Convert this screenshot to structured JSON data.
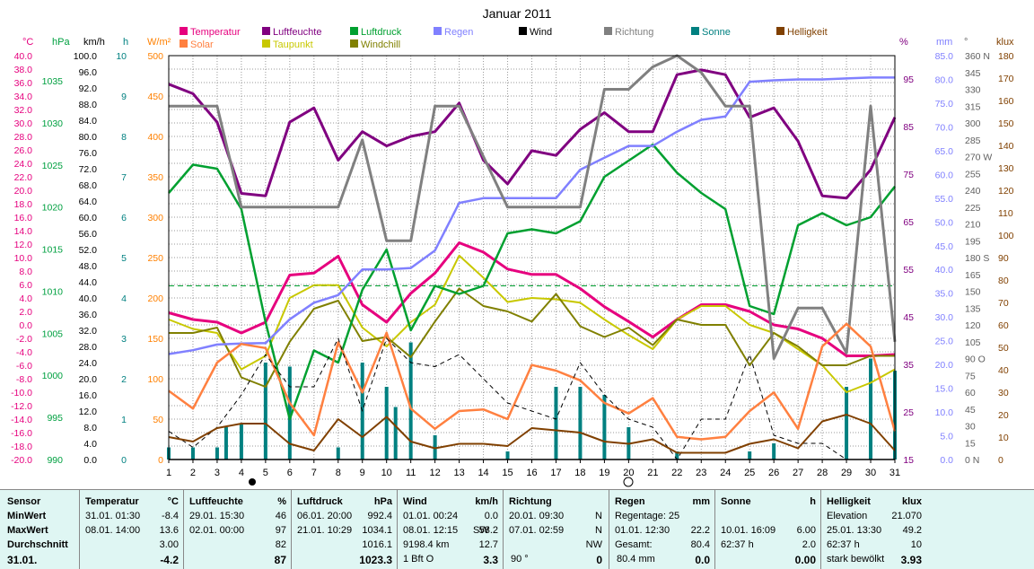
{
  "chart_data": {
    "type": "line",
    "title": "Januar 2011",
    "days": [
      "1",
      "2",
      "3",
      "4",
      "5",
      "6",
      "7",
      "8",
      "9",
      "10",
      "11",
      "12",
      "13",
      "14",
      "15",
      "16",
      "17",
      "18",
      "19",
      "20",
      "21",
      "22",
      "23",
      "24",
      "25",
      "26",
      "27",
      "28",
      "29",
      "30",
      "31"
    ],
    "axes": {
      "temp": {
        "unit": "°C",
        "color": "#e6007e",
        "ticks": [
          "40.0",
          "38.0",
          "36.0",
          "34.0",
          "32.0",
          "30.0",
          "28.0",
          "26.0",
          "24.0",
          "22.0",
          "20.0",
          "18.0",
          "16.0",
          "14.0",
          "12.0",
          "10.0",
          "8.0",
          "6.0",
          "4.0",
          "2.0",
          "0.0",
          "-2.0",
          "-4.0",
          "-6.0",
          "-8.0",
          "-10.0",
          "-12.0",
          "-14.0",
          "-16.0",
          "-18.0",
          "-20.0"
        ]
      },
      "press": {
        "unit": "hPa",
        "color": "#00a040",
        "ticks": [
          "1035",
          "1030",
          "1025",
          "1020",
          "1015",
          "1010",
          "1005",
          "1000",
          "995",
          "990"
        ]
      },
      "wind": {
        "unit": "km/h",
        "color": "#000000",
        "ticks": [
          "100.0",
          "96.0",
          "92.0",
          "88.0",
          "84.0",
          "80.0",
          "76.0",
          "72.0",
          "68.0",
          "64.0",
          "60.0",
          "56.0",
          "52.0",
          "48.0",
          "44.0",
          "40.0",
          "36.0",
          "32.0",
          "28.0",
          "24.0",
          "20.0",
          "16.0",
          "12.0",
          "8.0",
          "4.0",
          "0.0"
        ]
      },
      "sun": {
        "unit": "h",
        "color": "#008080",
        "ticks": [
          "10",
          "9",
          "8",
          "7",
          "6",
          "5",
          "4",
          "3",
          "2",
          "1",
          "0"
        ]
      },
      "solar": {
        "unit": "W/m²",
        "color": "#ff8000",
        "ticks": [
          "500",
          "450",
          "400",
          "350",
          "300",
          "250",
          "200",
          "150",
          "100",
          "50",
          "0"
        ]
      },
      "hum": {
        "unit": "%",
        "color": "#800080",
        "ticks": [
          "95",
          "85",
          "75",
          "65",
          "55",
          "45",
          "35",
          "25",
          "15"
        ]
      },
      "rain": {
        "unit": "mm",
        "color": "#8080ff",
        "ticks": [
          "85.0",
          "80.0",
          "75.0",
          "70.0",
          "65.0",
          "60.0",
          "55.0",
          "50.0",
          "45.0",
          "40.0",
          "35.0",
          "30.0",
          "25.0",
          "20.0",
          "15.0",
          "10.0",
          "5.0",
          "0.0"
        ]
      },
      "dir": {
        "unit": "°",
        "color": "#606060",
        "ticks": [
          "360 N",
          "345",
          "330",
          "315",
          "300",
          "285",
          "270 W",
          "255",
          "240",
          "225",
          "210",
          "195",
          "180 S",
          "165",
          "150",
          "135",
          "120",
          "105",
          "90 O",
          "75",
          "60",
          "45",
          "30",
          "15",
          "0 N"
        ]
      },
      "light": {
        "unit": "klux",
        "color": "#804000",
        "ticks": [
          "180",
          "170",
          "160",
          "150",
          "140",
          "130",
          "120",
          "110",
          "100",
          "90",
          "80",
          "70",
          "60",
          "50",
          "40",
          "30",
          "20",
          "10",
          "0"
        ]
      }
    },
    "legend": [
      {
        "label": "Temperatur",
        "color": "#e6007e"
      },
      {
        "label": "Solar",
        "color": "#ff8040"
      },
      {
        "label": "Luftfeuchte",
        "color": "#800080"
      },
      {
        "label": "Taupunkt",
        "color": "#c8c800"
      },
      {
        "label": "Luftdruck",
        "color": "#00a030"
      },
      {
        "label": "Windchill",
        "color": "#808000"
      },
      {
        "label": "Regen",
        "color": "#8080ff"
      },
      {
        "label": "Wind",
        "color": "#000000"
      },
      {
        "label": "Richtung",
        "color": "#808080"
      },
      {
        "label": "Sonne",
        "color": "#008080"
      },
      {
        "label": "Helligkeit",
        "color": "#804000"
      }
    ],
    "series": [
      {
        "key": "temp",
        "axis": "temp",
        "min": -20,
        "max": 40,
        "color": "#e6007e",
        "width": 3,
        "values": [
          1.8,
          0.8,
          0.4,
          -1.2,
          0.4,
          7.4,
          7.7,
          10.2,
          3.0,
          0.4,
          4.7,
          7.7,
          12.2,
          10.8,
          8.3,
          7.5,
          7.5,
          5.4,
          2.7,
          0.5,
          -1.8,
          0.8,
          3.0,
          3.0,
          2.0,
          0.0,
          -0.6,
          -2.0,
          -4.6,
          -4.6,
          -4.4
        ]
      },
      {
        "key": "dew",
        "axis": "temp",
        "min": -20,
        "max": 40,
        "color": "#c8c800",
        "width": 2,
        "values": [
          0.8,
          -0.6,
          -1.2,
          -6.6,
          -4.6,
          4.0,
          5.9,
          5.9,
          -0.4,
          -3.2,
          0.4,
          3.0,
          10.3,
          7.0,
          3.4,
          4.0,
          3.8,
          3.3,
          0.8,
          -1.5,
          -3.6,
          0.8,
          2.8,
          2.8,
          0.0,
          -1.2,
          -3.6,
          -6.0,
          -10.0,
          -8.6,
          -6.6
        ]
      },
      {
        "key": "chill",
        "axis": "temp",
        "min": -20,
        "max": 40,
        "color": "#808000",
        "width": 2,
        "values": [
          -1.2,
          -1.2,
          -0.4,
          -7.8,
          -9.2,
          -2.5,
          2.4,
          3.6,
          -2.4,
          -1.8,
          -4.8,
          0.5,
          5.4,
          2.8,
          2.0,
          0.5,
          4.6,
          -0.2,
          -1.8,
          -0.4,
          -3.0,
          0.8,
          0.0,
          0.0,
          -6.0,
          -1.2,
          -3.2,
          -6.0,
          -6.0,
          -4.6,
          -4.6
        ]
      },
      {
        "key": "hum",
        "axis": "hum",
        "min": 15,
        "max": 100,
        "color": "#800080",
        "width": 3,
        "values": [
          94,
          92,
          86,
          71,
          70.5,
          86,
          89,
          78,
          84,
          81,
          83,
          84,
          90,
          78,
          73,
          80,
          79,
          84.5,
          88,
          84,
          84,
          96,
          97,
          96,
          87,
          89,
          82,
          70.5,
          70,
          76,
          87
        ]
      },
      {
        "key": "press",
        "axis": "press",
        "min": 990,
        "max": 1040,
        "color": "#00a030",
        "width": 2.5,
        "values": [
          1023,
          1026.5,
          1026,
          1021,
          1007,
          995,
          1003.5,
          1002,
          1011,
          1016,
          1006,
          1011.5,
          1010.5,
          1011.5,
          1018,
          1018.5,
          1018,
          1019.5,
          1025,
          1027,
          1029,
          1025.5,
          1023,
          1021,
          1009,
          1008,
          1019,
          1020.5,
          1019,
          1020,
          1023.8
        ]
      },
      {
        "key": "rain",
        "axis": "rain",
        "min": 0,
        "max": 85,
        "color": "#8080ff",
        "width": 2.5,
        "values": [
          22.2,
          23,
          24.2,
          24.4,
          24.5,
          29.5,
          33,
          34.6,
          40,
          40,
          40.3,
          44,
          54,
          55,
          55,
          55,
          55,
          61,
          63.5,
          66,
          66,
          69,
          71.5,
          72.2,
          79.5,
          79.8,
          80,
          80,
          80.2,
          80.4,
          80.4
        ]
      },
      {
        "key": "dir",
        "axis": "dir",
        "min": 0,
        "max": 360,
        "color": "#808080",
        "width": 3,
        "values": [
          315,
          315,
          315,
          225,
          225,
          225,
          225,
          225,
          285,
          195,
          195,
          315,
          315,
          270,
          225,
          225,
          225,
          225,
          330,
          330,
          350,
          360,
          345,
          315,
          315,
          90,
          135,
          135,
          95,
          315,
          105
        ]
      },
      {
        "key": "solar",
        "axis": "solar",
        "min": 0,
        "max": 500,
        "color": "#ff8040",
        "width": 2.5,
        "values": [
          85,
          63,
          120,
          143,
          138,
          70,
          30,
          145,
          83,
          157,
          63,
          38,
          60,
          62,
          50,
          117,
          110,
          98,
          70,
          57,
          76,
          28,
          25,
          28,
          60,
          83,
          38,
          140,
          168,
          140,
          35
        ]
      },
      {
        "key": "wind",
        "axis": "wind",
        "min": 0,
        "max": 100,
        "color": "#000000",
        "width": 1,
        "dash": "5,4",
        "values": [
          7,
          3,
          8,
          16,
          26,
          18,
          18,
          30,
          12,
          30,
          24,
          23,
          26,
          20,
          14,
          12,
          10,
          24,
          16,
          10,
          8,
          0,
          10,
          10,
          26,
          6,
          4,
          4,
          0,
          0,
          0
        ]
      },
      {
        "key": "light",
        "axis": "light",
        "min": 0,
        "max": 180,
        "color": "#804000",
        "width": 2,
        "values": [
          10,
          8,
          14,
          16,
          16,
          7,
          4,
          18,
          10,
          19,
          8,
          5,
          7,
          7,
          6,
          14,
          13,
          12,
          8,
          7,
          9,
          3,
          3,
          3,
          7,
          9,
          5,
          17,
          20,
          16,
          4
        ]
      }
    ],
    "sunshine_hours": [
      0.3,
      0.3,
      0.3,
      0.9,
      2.4,
      2.3,
      0,
      0.3,
      2.4,
      1.8,
      2.9,
      0.6,
      0,
      0,
      0.2,
      0,
      1.8,
      1.8,
      1.6,
      0.8,
      0,
      0.2,
      0,
      0,
      0.2,
      0.4,
      0,
      0,
      1.8,
      2.5,
      2.2
    ],
    "sunshine_hours_extra": [
      0,
      0,
      0.8,
      0,
      0,
      0,
      0,
      0,
      0,
      1.3,
      0,
      0,
      0,
      0,
      0,
      0,
      0,
      0,
      0,
      0,
      0,
      0,
      0,
      0,
      0,
      0,
      0,
      0,
      0,
      0,
      0
    ],
    "reference_line": {
      "axis": "temp",
      "value": 5.8,
      "color": "#00a030"
    }
  },
  "stats": {
    "sensor": {
      "header": "Sensor",
      "rows": [
        "MinWert",
        "MaxWert",
        "Durchschnitt"
      ],
      "footer": "31.01."
    },
    "temperatur": {
      "header": "Temperatur",
      "unit": "°C",
      "min_time": "31.01.  01:30",
      "min": "-8.4",
      "max_time": "08.01.  14:00",
      "max": "13.6",
      "avg": "3.00",
      "current": "-4.2"
    },
    "luftfeuchte": {
      "header": "Luftfeuchte",
      "unit": "%",
      "min_time": "29.01.  15:30",
      "min": "46",
      "max_time": "02.01.  00:00",
      "max": "97",
      "avg": "82",
      "current": "87"
    },
    "luftdruck": {
      "header": "Luftdruck",
      "unit": "hPa",
      "min_time": "06.01.  20:00",
      "min": "992.4",
      "max_time": "21.01.  10:29",
      "max": "1034.1",
      "avg": "1016.1",
      "current": "1023.3"
    },
    "wind": {
      "header": "Wind",
      "unit": "km/h",
      "min_time": "01.01.  00:24",
      "min": "0.0",
      "max_time": "08.01.  12:15",
      "max_dir": "SW",
      "max": "58.2",
      "avg_label": "9198.4 km",
      "avg": "12.7",
      "current_label": "1 Bft O",
      "current": "3.3"
    },
    "richtung": {
      "header": "Richtung",
      "min_time": "20.01.  09:30",
      "min": "N",
      "max_time": "07.01.  02:59",
      "max": "N",
      "avg": "NW",
      "current_label": "90 °",
      "current": "0"
    },
    "regen": {
      "header": "Regen",
      "unit": "mm",
      "row1": "Regentage: 25",
      "row2_time": "01.01.  12:30",
      "row2": "22.2",
      "row3_label": "Gesamt:",
      "row3": "80.4",
      "current_label": "80.4 mm",
      "current": "0.0"
    },
    "sonne": {
      "header": "Sonne",
      "unit": "h",
      "max_time": "10.01.  16:09",
      "max": "6.00",
      "avg_label": "62:37 h",
      "avg": "2.0",
      "current": "0.00"
    },
    "helligkeit": {
      "header": "Helligkeit",
      "unit": "klux",
      "elev_label": "Elevation",
      "elev": "21.070",
      "max_time": "25.01.  13:30",
      "max": "49.2",
      "avg_label": "62:37 h",
      "avg": "10",
      "current_label": "stark bewölkt",
      "current": "3.93"
    }
  }
}
